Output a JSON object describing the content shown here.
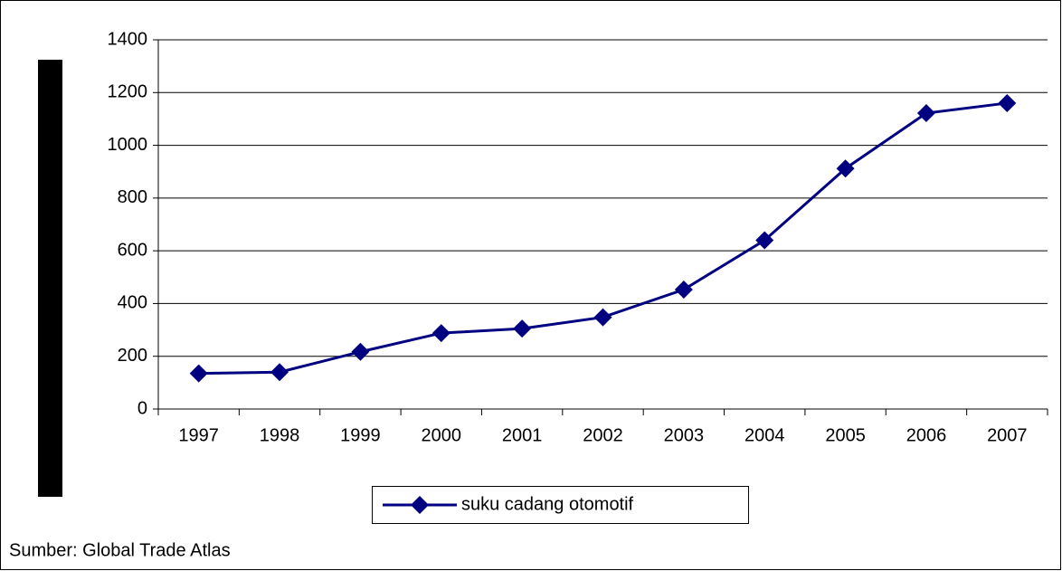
{
  "chart_data": {
    "type": "line",
    "categories": [
      "1997",
      "1998",
      "1999",
      "2000",
      "2001",
      "2002",
      "2003",
      "2004",
      "2005",
      "2006",
      "2007"
    ],
    "series": [
      {
        "name": "suku cadang otomotif",
        "color": "#000080",
        "values": [
          135,
          140,
          217,
          288,
          305,
          348,
          453,
          640,
          912,
          1122,
          1160
        ]
      }
    ],
    "ylim": [
      0,
      1400
    ],
    "yticks": [
      0,
      200,
      400,
      600,
      800,
      1000,
      1200,
      1400
    ],
    "grid": true,
    "legend": "bottom",
    "source": "Sumber: Global Trade Atlas"
  }
}
